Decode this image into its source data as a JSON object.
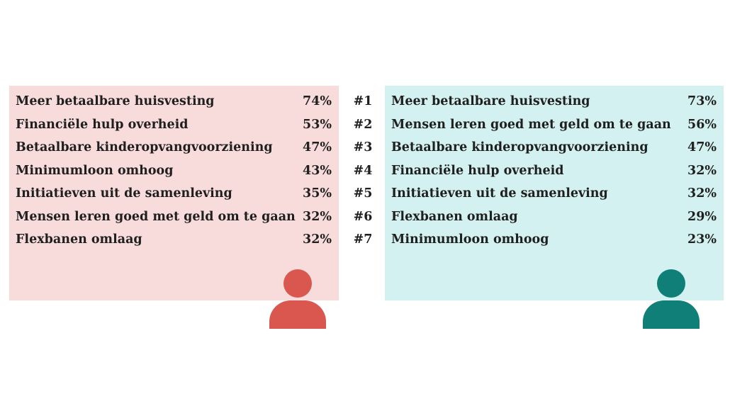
{
  "colors": {
    "left_panel_bg": "#f8dcdb",
    "right_panel_bg": "#d2f1f0",
    "left_person": "#d9574f",
    "right_person": "#0f7f77"
  },
  "icons": {
    "left": "person-icon",
    "right": "person-icon"
  },
  "chart_data": {
    "type": "table",
    "ranks": [
      "#1",
      "#2",
      "#3",
      "#4",
      "#5",
      "#6",
      "#7"
    ],
    "left": {
      "rows": [
        {
          "label": "Meer betaalbare huisvesting",
          "value": "74%"
        },
        {
          "label": "Financiële hulp overheid",
          "value": "53%"
        },
        {
          "label": "Betaalbare kinderopvangvoorziening",
          "value": "47%"
        },
        {
          "label": "Minimumloon omhoog",
          "value": "43%"
        },
        {
          "label": "Initiatieven uit de samenleving",
          "value": "35%"
        },
        {
          "label": "Mensen leren goed met geld om te gaan",
          "value": "32%"
        },
        {
          "label": "Flexbanen omlaag",
          "value": "32%"
        }
      ]
    },
    "right": {
      "rows": [
        {
          "label": "Meer betaalbare huisvesting",
          "value": "73%"
        },
        {
          "label": "Mensen leren goed met geld om te gaan",
          "value": "56%"
        },
        {
          "label": "Betaalbare kinderopvangvoorziening",
          "value": "47%"
        },
        {
          "label": "Financiële hulp overheid",
          "value": "32%"
        },
        {
          "label": "Initiatieven uit de samenleving",
          "value": "32%"
        },
        {
          "label": "Flexbanen omlaag",
          "value": "29%"
        },
        {
          "label": "Minimumloon omhoog",
          "value": "23%"
        }
      ]
    }
  }
}
